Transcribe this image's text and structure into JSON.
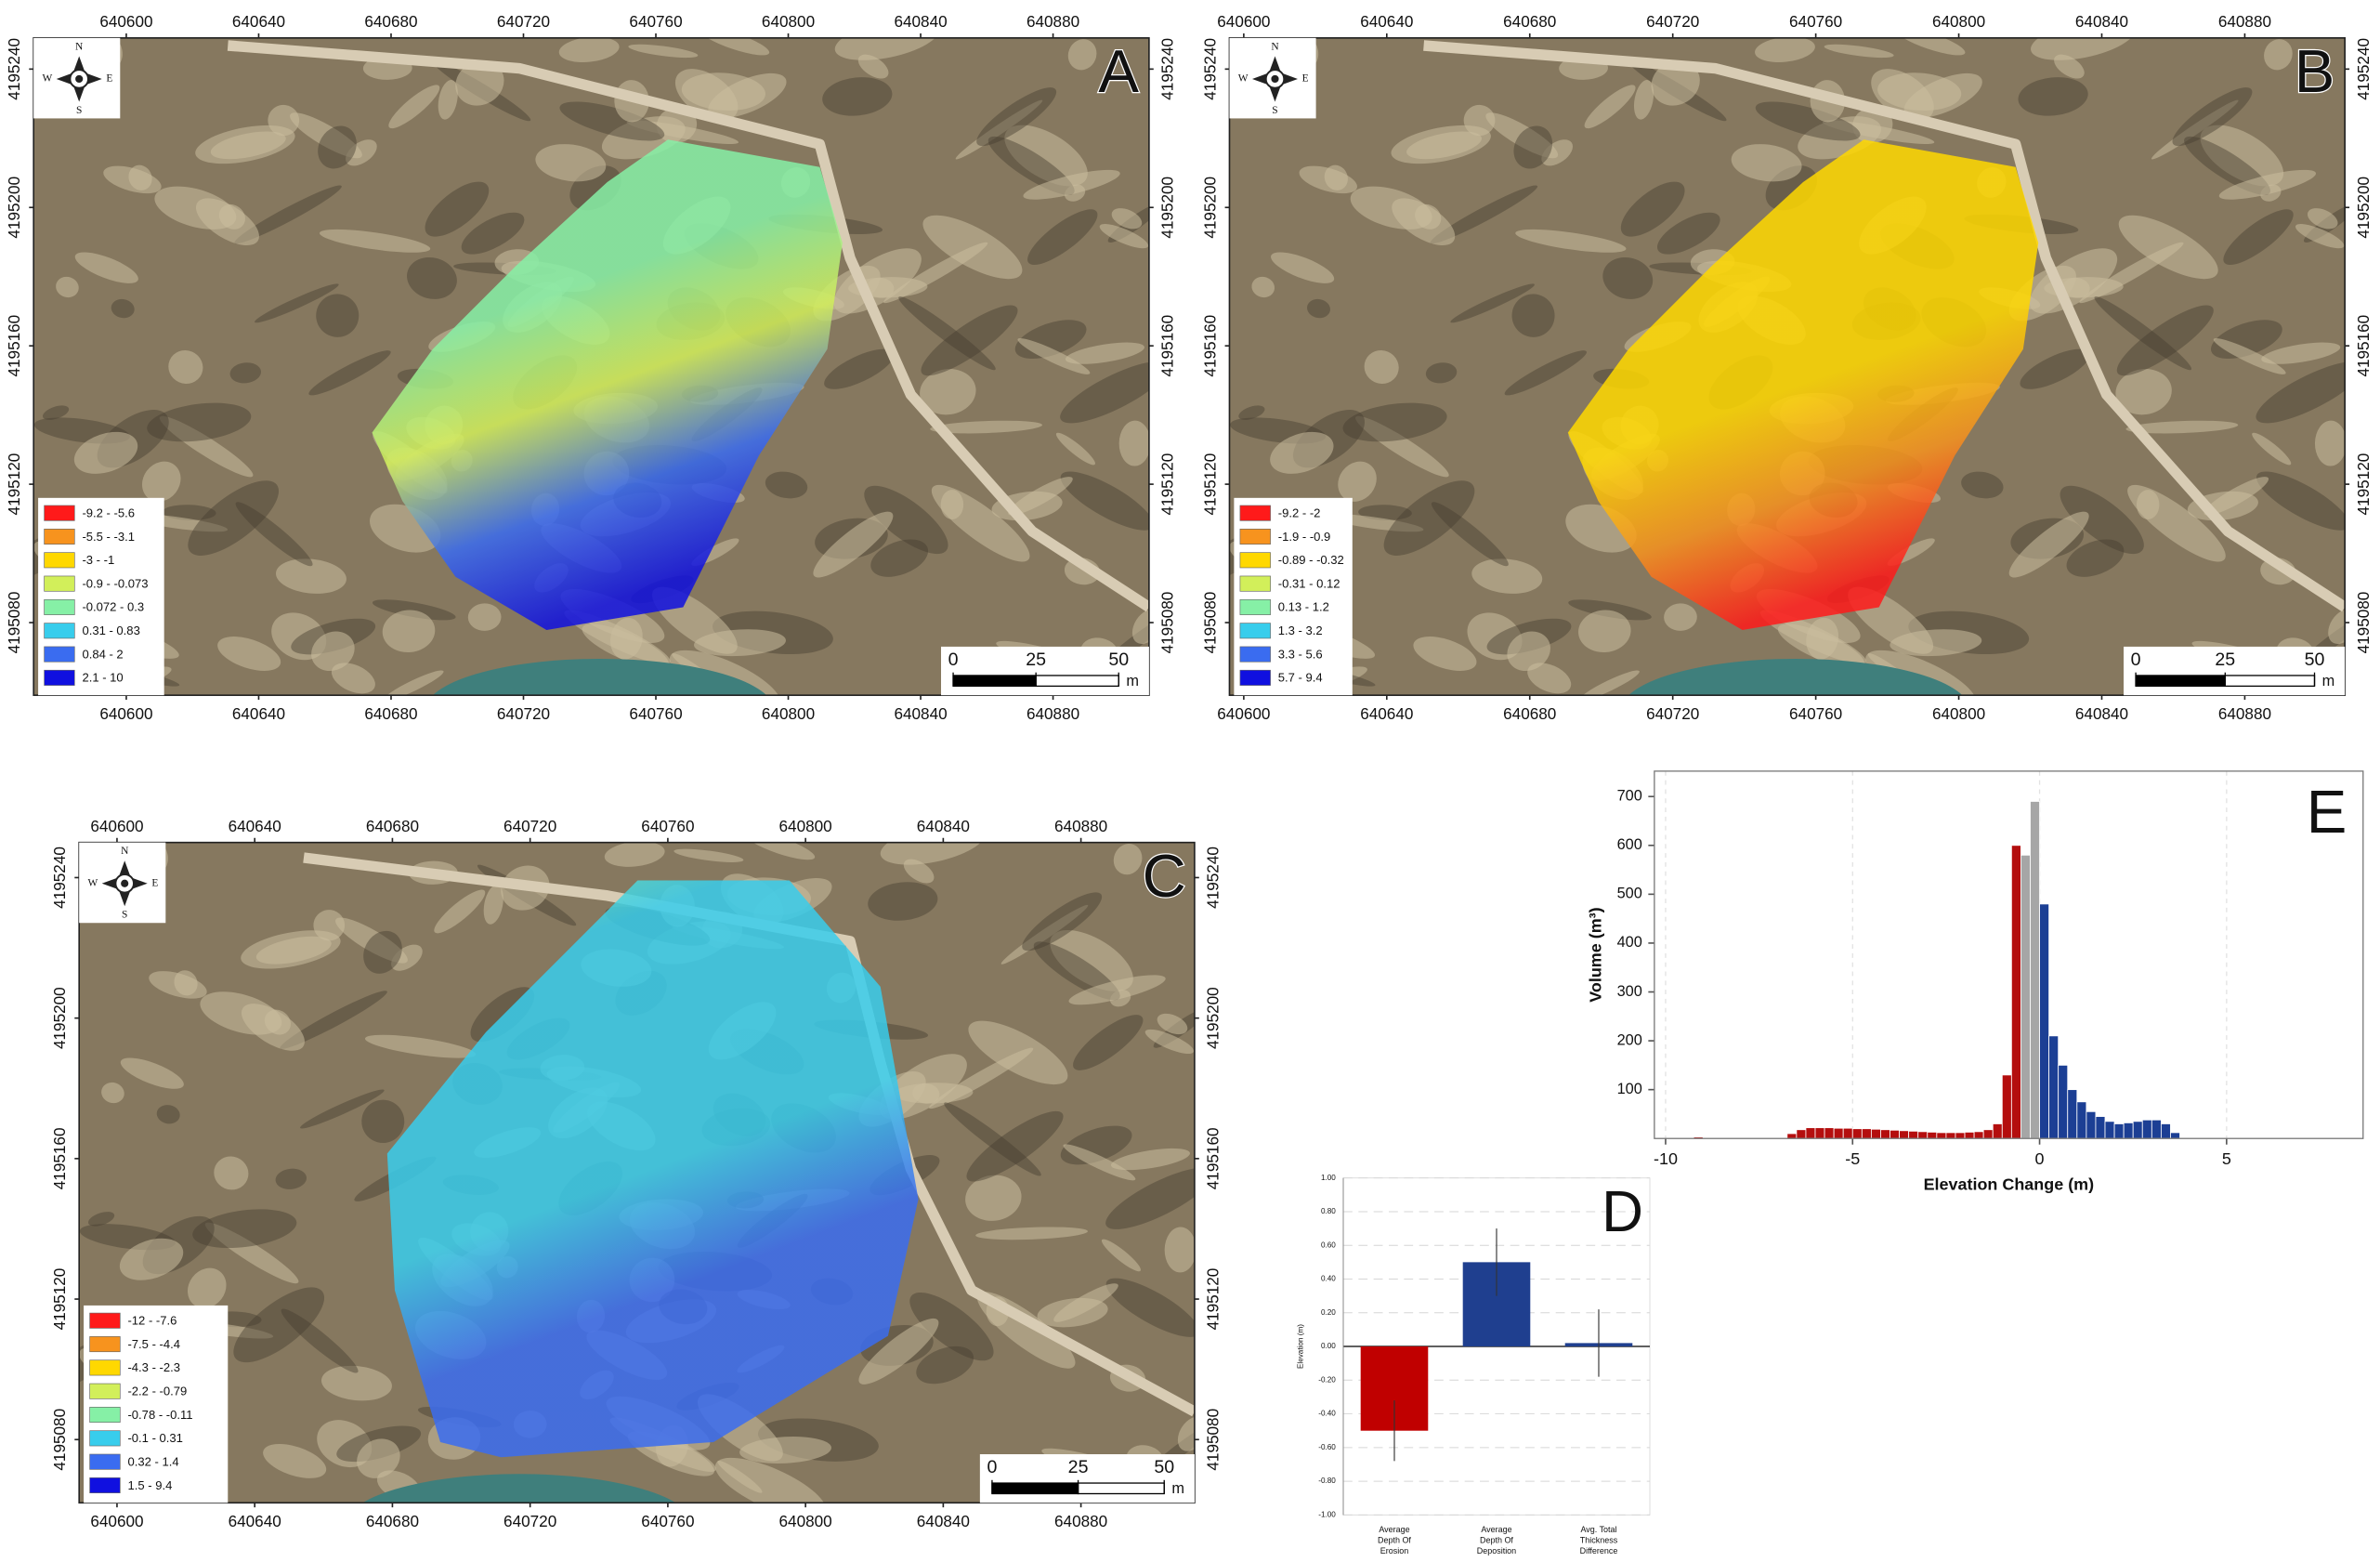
{
  "maps": [
    {
      "label": "A",
      "xlim": [
        640572,
        640909
      ],
      "ylim": [
        4195059,
        4195249
      ],
      "xticks": [
        640600,
        640640,
        640680,
        640720,
        640760,
        640800,
        640840,
        640880
      ],
      "yticks": [
        4195080,
        4195120,
        4195160,
        4195200,
        4195240
      ],
      "compass": [
        "N",
        "E",
        "S",
        "W"
      ],
      "legend": [
        {
          "label": "-9.2 - -5.6",
          "color": "#ff1a1a"
        },
        {
          "label": "-5.5 - -3.1",
          "color": "#f7931e"
        },
        {
          "label": "-3 - -1",
          "color": "#ffd800"
        },
        {
          "label": "-0.9 - -0.073",
          "color": "#d2ef5a"
        },
        {
          "label": "-0.072 - 0.3",
          "color": "#86f0a6"
        },
        {
          "label": "0.31 - 0.83",
          "color": "#38cdec"
        },
        {
          "label": "0.84 - 2",
          "color": "#3a6cf0"
        },
        {
          "label": "2.1 - 10",
          "color": "#1010e0"
        }
      ],
      "scale_ticks": [
        0,
        25,
        50
      ],
      "scale_unit": "m"
    },
    {
      "label": "B",
      "xlim": [
        640596,
        640908
      ],
      "ylim": [
        4195059,
        4195249
      ],
      "xticks": [
        640600,
        640640,
        640680,
        640720,
        640760,
        640800,
        640840,
        640880
      ],
      "yticks": [
        4195080,
        4195120,
        4195160,
        4195200,
        4195240
      ],
      "compass": [
        "N",
        "E",
        "S",
        "W"
      ],
      "legend": [
        {
          "label": "-9.2 - -2",
          "color": "#ff1a1a"
        },
        {
          "label": "-1.9 - -0.9",
          "color": "#f7931e"
        },
        {
          "label": "-0.89 - -0.32",
          "color": "#ffd800"
        },
        {
          "label": "-0.31 - 0.12",
          "color": "#d2ef5a"
        },
        {
          "label": "0.13 - 1.2",
          "color": "#86f0a6"
        },
        {
          "label": "1.3 - 3.2",
          "color": "#38cdec"
        },
        {
          "label": "3.3 - 5.6",
          "color": "#3a6cf0"
        },
        {
          "label": "5.7 - 9.4",
          "color": "#1010e0"
        }
      ],
      "scale_ticks": [
        0,
        25,
        50
      ],
      "scale_unit": "m"
    },
    {
      "label": "C",
      "xlim": [
        640589,
        640913
      ],
      "ylim": [
        4195062,
        4195250
      ],
      "xticks": [
        640600,
        640640,
        640680,
        640720,
        640760,
        640800,
        640840,
        640880
      ],
      "yticks": [
        4195080,
        4195120,
        4195160,
        4195200,
        4195240
      ],
      "compass": [
        "N",
        "E",
        "S",
        "W"
      ],
      "legend": [
        {
          "label": "-12 - -7.6",
          "color": "#ff1a1a"
        },
        {
          "label": "-7.5 - -4.4",
          "color": "#f7931e"
        },
        {
          "label": "-4.3 - -2.3",
          "color": "#ffd800"
        },
        {
          "label": "-2.2 - -0.79",
          "color": "#d2ef5a"
        },
        {
          "label": "-0.78 - -0.11",
          "color": "#86f0a6"
        },
        {
          "label": "-0.1 - 0.31",
          "color": "#38cdec"
        },
        {
          "label": "0.32 - 1.4",
          "color": "#3a6cf0"
        },
        {
          "label": "1.5 - 9.4",
          "color": "#1010e0"
        }
      ],
      "scale_ticks": [
        0,
        25,
        50
      ],
      "scale_unit": "m"
    }
  ],
  "chart_data": [
    {
      "type": "bar",
      "label": "D",
      "ylabel": "Elevation (m)",
      "categories": [
        [
          "Average",
          "Depth Of",
          "Erosion"
        ],
        [
          "Average",
          "Depth Of",
          "Deposition"
        ],
        [
          "Avg. Total",
          "Thickness",
          "Difference"
        ]
      ],
      "values": [
        -0.5,
        0.5,
        0.02
      ],
      "errors": [
        0.18,
        0.2,
        0.2
      ],
      "colors": [
        "#c00000",
        "#1f3f8f",
        "#1f3f8f"
      ],
      "ylim": [
        -1,
        1
      ],
      "yticks": [
        {
          "value": -1,
          "label": "-1.00"
        },
        {
          "value": -0.8,
          "label": "-0.80"
        },
        {
          "value": -0.6,
          "label": "-0.60"
        },
        {
          "value": -0.4,
          "label": "-0.40"
        },
        {
          "value": -0.2,
          "label": "-0.20"
        },
        {
          "value": 0,
          "label": "0.00"
        },
        {
          "value": 0.2,
          "label": "0.20"
        },
        {
          "value": 0.4,
          "label": "0.40"
        },
        {
          "value": 0.6,
          "label": "0.60"
        },
        {
          "value": 0.8,
          "label": "0.80"
        },
        {
          "value": 1,
          "label": "1.00"
        }
      ],
      "grid": true
    },
    {
      "type": "histogram",
      "label": "E",
      "xlabel": "Elevation Change (m)",
      "ylabel": "Volume (m³)",
      "bins": [
        -9.25,
        -9,
        -8.75,
        -8.5,
        -8.25,
        -8,
        -7.75,
        -7.5,
        -7.25,
        -7,
        -6.75,
        -6.5,
        -6.25,
        -6,
        -5.75,
        -5.5,
        -5.25,
        -5,
        -4.75,
        -4.5,
        -4.25,
        -4,
        -3.75,
        -3.5,
        -3.25,
        -3,
        -2.75,
        -2.5,
        -2.25,
        -2,
        -1.75,
        -1.5,
        -1.25,
        -1,
        -0.75,
        -0.5,
        -0.25,
        0,
        0.25,
        0.5,
        0.75,
        1,
        1.25,
        1.5,
        1.75,
        2,
        2.25,
        2.5,
        2.75,
        3,
        3.25,
        3.5,
        3.75
      ],
      "series": [
        {
          "color": "#b40e0e",
          "values": [
            3,
            0,
            0,
            0,
            0,
            0,
            0,
            0,
            0,
            0,
            10,
            18,
            22,
            22,
            22,
            21,
            21,
            20,
            20,
            19,
            18,
            17,
            16,
            15,
            14,
            13,
            12,
            12,
            12,
            13,
            14,
            18,
            30,
            130,
            600,
            0,
            0,
            0,
            0,
            0,
            0,
            0,
            0,
            0,
            0,
            0,
            0,
            0,
            0,
            0,
            0,
            0
          ]
        },
        {
          "color": "#a6a6a6",
          "values": [
            0,
            0,
            0,
            0,
            0,
            0,
            0,
            0,
            0,
            0,
            0,
            0,
            0,
            0,
            0,
            0,
            0,
            0,
            0,
            0,
            0,
            0,
            0,
            0,
            0,
            0,
            0,
            0,
            0,
            0,
            0,
            0,
            0,
            0,
            0,
            580,
            690,
            0,
            0,
            0,
            0,
            0,
            0,
            0,
            0,
            0,
            0,
            0,
            0,
            0,
            0,
            0
          ]
        },
        {
          "color": "#1c3f94",
          "values": [
            0,
            0,
            0,
            0,
            0,
            0,
            0,
            0,
            0,
            0,
            0,
            0,
            0,
            0,
            0,
            0,
            0,
            0,
            0,
            0,
            0,
            0,
            0,
            0,
            0,
            0,
            0,
            0,
            0,
            0,
            0,
            0,
            0,
            0,
            0,
            0,
            0,
            480,
            210,
            150,
            100,
            75,
            55,
            45,
            35,
            30,
            32,
            35,
            38,
            38,
            30,
            12
          ]
        }
      ],
      "xlim": [
        -10.3,
        8.65
      ],
      "ylim": [
        0,
        752
      ],
      "xticks": [
        -10,
        -5,
        0,
        5
      ],
      "yticks": [
        100,
        200,
        300,
        400,
        500,
        600,
        700
      ],
      "grid": true
    }
  ]
}
